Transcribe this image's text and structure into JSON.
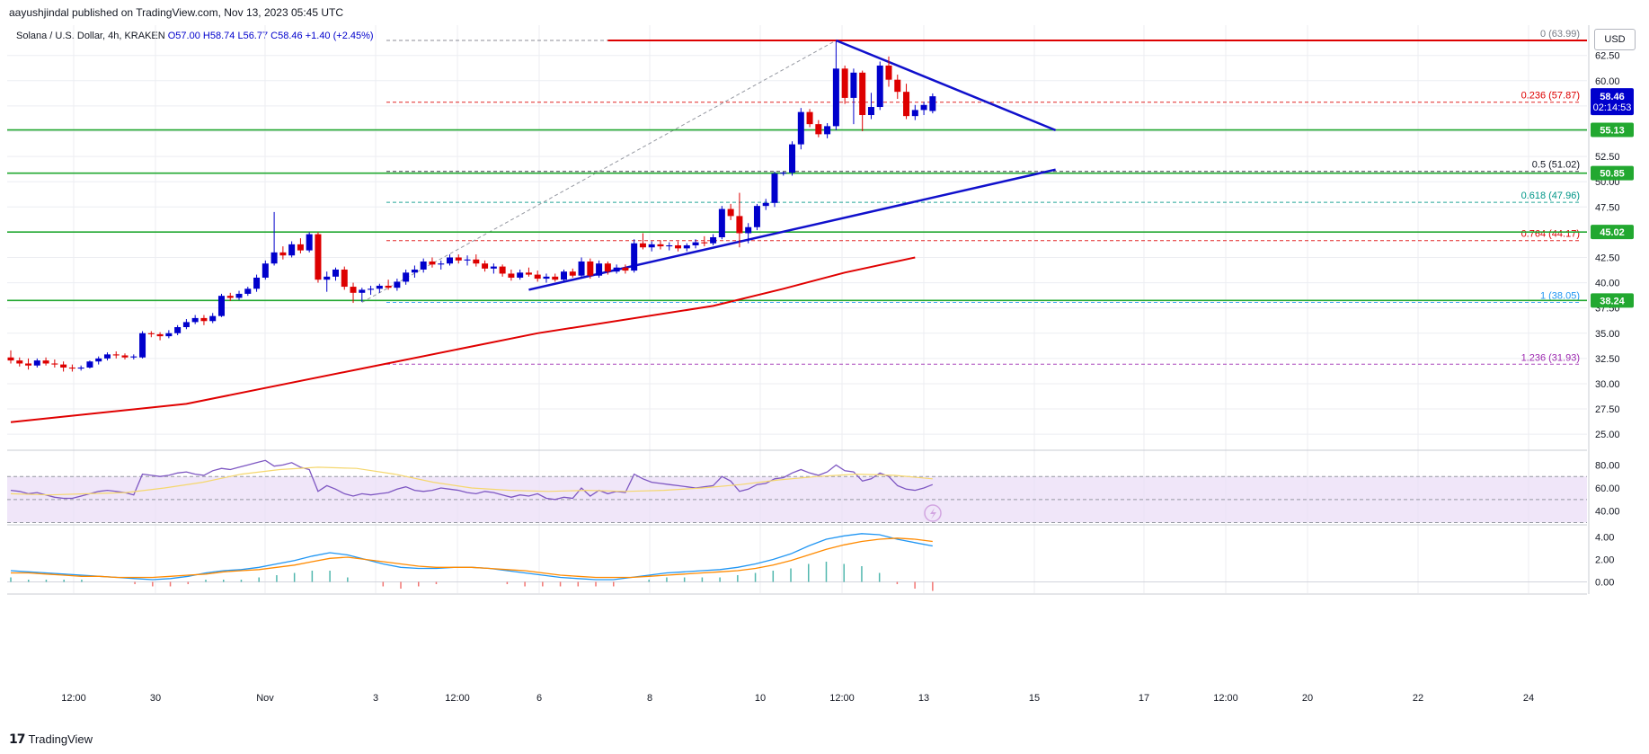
{
  "header": {
    "published": "aayushjindal published on TradingView.com, Nov 13, 2023 05:45 UTC",
    "symbol": "Solana / U.S. Dollar, 4h, KRAKEN",
    "open": "O57.00",
    "high": "H58.74",
    "low": "L56.77",
    "close": "C58.46",
    "change": "+1.40 (+2.45%)",
    "currency": "USD"
  },
  "footer": {
    "brand": "TradingView",
    "logo": "tradingview-logo"
  },
  "colors": {
    "up": "#0000cc",
    "down": "#dd0000",
    "support": "#22a830",
    "resistance": "#dd0000",
    "trendline": "#1010cc",
    "ema": "#e00000",
    "rsi_band": "#e9dcf7",
    "macd_line": "#2196f3",
    "macd_signal": "#ff8a00"
  },
  "chart_data": {
    "type": "candlestick",
    "symbol": "Solana / U.S. Dollar",
    "timeframe": "4h",
    "exchange": "KRAKEN",
    "x_tick_labels": [
      "12:00",
      "30",
      "Nov",
      "3",
      "12:00",
      "6",
      "8",
      "10",
      "12:00",
      "13",
      "15",
      "17",
      "12:00",
      "20",
      "22",
      "24"
    ],
    "y_tick_labels": [
      "25.00",
      "27.50",
      "30.00",
      "32.50",
      "35.00",
      "37.50",
      "40.00",
      "42.50",
      "45.00",
      "47.50",
      "50.00",
      "52.50",
      "55.00",
      "57.50",
      "60.00",
      "62.50"
    ],
    "ylim": [
      23.5,
      65.5
    ],
    "candles": [
      {
        "o": 32.6,
        "h": 33.3,
        "l": 32.0,
        "c": 32.3
      },
      {
        "o": 32.3,
        "h": 32.6,
        "l": 31.7,
        "c": 32.0
      },
      {
        "o": 32.0,
        "h": 32.5,
        "l": 31.4,
        "c": 31.8
      },
      {
        "o": 31.8,
        "h": 32.5,
        "l": 31.6,
        "c": 32.3
      },
      {
        "o": 32.3,
        "h": 32.6,
        "l": 31.8,
        "c": 32.0
      },
      {
        "o": 32.0,
        "h": 32.4,
        "l": 31.6,
        "c": 31.9
      },
      {
        "o": 31.9,
        "h": 32.2,
        "l": 31.2,
        "c": 31.6
      },
      {
        "o": 31.6,
        "h": 31.9,
        "l": 31.2,
        "c": 31.5
      },
      {
        "o": 31.5,
        "h": 31.8,
        "l": 31.3,
        "c": 31.6
      },
      {
        "o": 31.6,
        "h": 32.3,
        "l": 31.5,
        "c": 32.2
      },
      {
        "o": 32.2,
        "h": 32.7,
        "l": 31.9,
        "c": 32.5
      },
      {
        "o": 32.5,
        "h": 33.1,
        "l": 32.3,
        "c": 32.9
      },
      {
        "o": 32.9,
        "h": 33.2,
        "l": 32.5,
        "c": 32.8
      },
      {
        "o": 32.8,
        "h": 33.0,
        "l": 32.4,
        "c": 32.6
      },
      {
        "o": 32.6,
        "h": 32.9,
        "l": 32.4,
        "c": 32.7
      },
      {
        "o": 32.6,
        "h": 35.2,
        "l": 32.5,
        "c": 35.0
      },
      {
        "o": 35.0,
        "h": 35.2,
        "l": 34.6,
        "c": 34.9
      },
      {
        "o": 34.9,
        "h": 35.1,
        "l": 34.3,
        "c": 34.7
      },
      {
        "o": 34.7,
        "h": 35.3,
        "l": 34.5,
        "c": 35.0
      },
      {
        "o": 35.0,
        "h": 35.8,
        "l": 34.8,
        "c": 35.6
      },
      {
        "o": 35.6,
        "h": 36.4,
        "l": 35.4,
        "c": 36.1
      },
      {
        "o": 36.1,
        "h": 36.8,
        "l": 35.9,
        "c": 36.5
      },
      {
        "o": 36.5,
        "h": 36.8,
        "l": 35.8,
        "c": 36.2
      },
      {
        "o": 36.2,
        "h": 37.0,
        "l": 36.0,
        "c": 36.7
      },
      {
        "o": 36.7,
        "h": 38.9,
        "l": 36.6,
        "c": 38.7
      },
      {
        "o": 38.7,
        "h": 39.0,
        "l": 38.2,
        "c": 38.5
      },
      {
        "o": 38.5,
        "h": 39.2,
        "l": 38.3,
        "c": 38.9
      },
      {
        "o": 38.9,
        "h": 39.6,
        "l": 38.7,
        "c": 39.4
      },
      {
        "o": 39.4,
        "h": 40.8,
        "l": 39.1,
        "c": 40.5
      },
      {
        "o": 40.5,
        "h": 42.2,
        "l": 40.3,
        "c": 41.9
      },
      {
        "o": 41.9,
        "h": 47.0,
        "l": 41.7,
        "c": 43.0
      },
      {
        "o": 43.0,
        "h": 43.6,
        "l": 42.3,
        "c": 42.7
      },
      {
        "o": 42.7,
        "h": 44.1,
        "l": 42.5,
        "c": 43.8
      },
      {
        "o": 43.8,
        "h": 44.4,
        "l": 42.9,
        "c": 43.2
      },
      {
        "o": 43.2,
        "h": 45.0,
        "l": 43.0,
        "c": 44.8
      },
      {
        "o": 44.8,
        "h": 45.0,
        "l": 40.0,
        "c": 40.3
      },
      {
        "o": 40.3,
        "h": 41.1,
        "l": 39.1,
        "c": 40.6
      },
      {
        "o": 40.6,
        "h": 41.5,
        "l": 40.2,
        "c": 41.3
      },
      {
        "o": 41.3,
        "h": 41.6,
        "l": 39.3,
        "c": 39.6
      },
      {
        "o": 39.6,
        "h": 40.0,
        "l": 38.0,
        "c": 39.0
      },
      {
        "o": 39.0,
        "h": 39.5,
        "l": 38.1,
        "c": 39.3
      },
      {
        "o": 39.3,
        "h": 39.7,
        "l": 38.8,
        "c": 39.4
      },
      {
        "o": 39.4,
        "h": 39.9,
        "l": 39.0,
        "c": 39.7
      },
      {
        "o": 39.7,
        "h": 40.3,
        "l": 39.3,
        "c": 39.5
      },
      {
        "o": 39.5,
        "h": 40.4,
        "l": 39.2,
        "c": 40.1
      },
      {
        "o": 40.1,
        "h": 41.3,
        "l": 39.8,
        "c": 41.0
      },
      {
        "o": 41.0,
        "h": 41.7,
        "l": 40.5,
        "c": 41.3
      },
      {
        "o": 41.3,
        "h": 42.4,
        "l": 41.0,
        "c": 42.1
      },
      {
        "o": 42.1,
        "h": 42.5,
        "l": 41.5,
        "c": 41.8
      },
      {
        "o": 41.8,
        "h": 42.2,
        "l": 41.3,
        "c": 41.9
      },
      {
        "o": 41.9,
        "h": 42.8,
        "l": 41.7,
        "c": 42.5
      },
      {
        "o": 42.5,
        "h": 42.8,
        "l": 41.9,
        "c": 42.2
      },
      {
        "o": 42.2,
        "h": 42.7,
        "l": 41.7,
        "c": 42.3
      },
      {
        "o": 42.3,
        "h": 42.8,
        "l": 41.6,
        "c": 41.9
      },
      {
        "o": 41.9,
        "h": 42.2,
        "l": 41.1,
        "c": 41.4
      },
      {
        "o": 41.4,
        "h": 41.9,
        "l": 40.9,
        "c": 41.6
      },
      {
        "o": 41.6,
        "h": 41.8,
        "l": 40.6,
        "c": 40.9
      },
      {
        "o": 40.9,
        "h": 41.3,
        "l": 40.2,
        "c": 40.5
      },
      {
        "o": 40.5,
        "h": 41.3,
        "l": 40.3,
        "c": 41.0
      },
      {
        "o": 41.0,
        "h": 41.5,
        "l": 40.6,
        "c": 40.8
      },
      {
        "o": 40.8,
        "h": 41.2,
        "l": 40.1,
        "c": 40.4
      },
      {
        "o": 40.4,
        "h": 40.9,
        "l": 40.0,
        "c": 40.6
      },
      {
        "o": 40.6,
        "h": 40.9,
        "l": 40.1,
        "c": 40.3
      },
      {
        "o": 40.3,
        "h": 41.3,
        "l": 40.1,
        "c": 41.1
      },
      {
        "o": 41.1,
        "h": 41.4,
        "l": 40.5,
        "c": 40.7
      },
      {
        "o": 40.7,
        "h": 42.5,
        "l": 40.5,
        "c": 42.1
      },
      {
        "o": 42.1,
        "h": 42.4,
        "l": 40.4,
        "c": 40.7
      },
      {
        "o": 40.7,
        "h": 42.2,
        "l": 40.5,
        "c": 41.9
      },
      {
        "o": 41.9,
        "h": 42.1,
        "l": 40.8,
        "c": 41.1
      },
      {
        "o": 41.1,
        "h": 41.8,
        "l": 40.9,
        "c": 41.5
      },
      {
        "o": 41.5,
        "h": 41.8,
        "l": 40.9,
        "c": 41.2
      },
      {
        "o": 41.2,
        "h": 44.3,
        "l": 41.0,
        "c": 43.9
      },
      {
        "o": 43.9,
        "h": 44.9,
        "l": 43.3,
        "c": 43.5
      },
      {
        "o": 43.5,
        "h": 44.1,
        "l": 43.1,
        "c": 43.8
      },
      {
        "o": 43.8,
        "h": 44.2,
        "l": 43.3,
        "c": 43.6
      },
      {
        "o": 43.6,
        "h": 44.0,
        "l": 43.2,
        "c": 43.7
      },
      {
        "o": 43.7,
        "h": 44.1,
        "l": 43.1,
        "c": 43.4
      },
      {
        "o": 43.4,
        "h": 43.9,
        "l": 43.1,
        "c": 43.7
      },
      {
        "o": 43.7,
        "h": 44.3,
        "l": 43.4,
        "c": 44.0
      },
      {
        "o": 44.0,
        "h": 44.6,
        "l": 43.6,
        "c": 43.9
      },
      {
        "o": 43.9,
        "h": 44.8,
        "l": 43.7,
        "c": 44.5
      },
      {
        "o": 44.5,
        "h": 47.6,
        "l": 44.3,
        "c": 47.3
      },
      {
        "o": 47.3,
        "h": 47.8,
        "l": 46.2,
        "c": 46.6
      },
      {
        "o": 46.6,
        "h": 48.9,
        "l": 43.5,
        "c": 44.9
      },
      {
        "o": 44.9,
        "h": 45.9,
        "l": 43.9,
        "c": 45.5
      },
      {
        "o": 45.5,
        "h": 47.8,
        "l": 45.2,
        "c": 47.6
      },
      {
        "o": 47.6,
        "h": 48.3,
        "l": 47.2,
        "c": 47.9
      },
      {
        "o": 47.9,
        "h": 51.0,
        "l": 47.5,
        "c": 50.8
      },
      {
        "o": 50.8,
        "h": 51.0,
        "l": 50.6,
        "c": 50.9
      },
      {
        "o": 50.9,
        "h": 54.0,
        "l": 50.6,
        "c": 53.7
      },
      {
        "o": 53.7,
        "h": 57.3,
        "l": 53.2,
        "c": 56.9
      },
      {
        "o": 56.9,
        "h": 57.2,
        "l": 55.4,
        "c": 55.7
      },
      {
        "o": 55.7,
        "h": 56.1,
        "l": 54.4,
        "c": 54.7
      },
      {
        "o": 54.7,
        "h": 55.8,
        "l": 54.3,
        "c": 55.5
      },
      {
        "o": 55.5,
        "h": 63.9,
        "l": 55.1,
        "c": 61.2
      },
      {
        "o": 61.2,
        "h": 61.5,
        "l": 57.7,
        "c": 58.3
      },
      {
        "o": 58.3,
        "h": 61.2,
        "l": 55.7,
        "c": 60.8
      },
      {
        "o": 60.8,
        "h": 61.0,
        "l": 55.0,
        "c": 56.6
      },
      {
        "o": 56.6,
        "h": 58.8,
        "l": 56.2,
        "c": 57.4
      },
      {
        "o": 57.4,
        "h": 61.9,
        "l": 57.1,
        "c": 61.5
      },
      {
        "o": 61.5,
        "h": 62.4,
        "l": 59.4,
        "c": 60.1
      },
      {
        "o": 60.1,
        "h": 60.6,
        "l": 58.2,
        "c": 58.9
      },
      {
        "o": 58.9,
        "h": 59.7,
        "l": 56.2,
        "c": 56.5
      },
      {
        "o": 56.5,
        "h": 57.6,
        "l": 56.1,
        "c": 57.1
      },
      {
        "o": 57.1,
        "h": 57.9,
        "l": 56.6,
        "c": 57.6
      },
      {
        "o": 57.0,
        "h": 58.74,
        "l": 56.77,
        "c": 58.46
      }
    ],
    "fibonacci": [
      {
        "label": "0 (63.99)",
        "value": 63.99,
        "color": "#787b86"
      },
      {
        "label": "0.236 (57.87)",
        "value": 57.87,
        "color": "#dd0000"
      },
      {
        "label": "0.5 (51.02)",
        "value": 51.02,
        "color": "#131722"
      },
      {
        "label": "0.618 (47.96)",
        "value": 47.96,
        "color": "#009688"
      },
      {
        "label": "0.764 (44.17)",
        "value": 44.17,
        "color": "#dd0000"
      },
      {
        "label": "1 (38.05)",
        "value": 38.05,
        "color": "#2196f3"
      },
      {
        "label": "1.236 (31.93)",
        "value": 31.93,
        "color": "#9c27b0"
      }
    ],
    "horizontal_levels": [
      {
        "price": 55.13,
        "label": "55.13",
        "color": "#22a830"
      },
      {
        "price": 50.85,
        "label": "50.85",
        "color": "#22a830"
      },
      {
        "price": 45.02,
        "label": "45.02",
        "color": "#22a830"
      },
      {
        "price": 38.24,
        "label": "38.24",
        "color": "#22a830"
      }
    ],
    "resistance_price": 63.99,
    "last_price": {
      "value": "58.46",
      "countdown": "02:14:53"
    },
    "trendlines": [
      {
        "from": {
          "i": 59,
          "p": 39.3
        },
        "to": {
          "i": 119,
          "p": 51.2
        }
      },
      {
        "from": {
          "i": 94,
          "p": 63.99
        },
        "to": {
          "i": 119,
          "p": 55.1
        }
      }
    ],
    "ema_points": [
      [
        0,
        26.2
      ],
      [
        20,
        28.0
      ],
      [
        40,
        31.5
      ],
      [
        60,
        35.0
      ],
      [
        80,
        37.7
      ],
      [
        88,
        39.4
      ],
      [
        95,
        41.0
      ],
      [
        103,
        42.5
      ]
    ],
    "rsi": {
      "y_tick_labels": [
        "40.00",
        "60.00",
        "80.00"
      ],
      "ylim": [
        28,
        92
      ],
      "band": [
        30,
        70
      ],
      "mid": 50,
      "values": [
        58,
        57,
        55,
        56,
        54,
        52,
        51,
        51,
        53,
        55,
        57,
        58,
        57,
        56,
        54,
        72,
        71,
        70,
        71,
        73,
        74,
        72,
        71,
        75,
        77,
        76,
        78,
        80,
        82,
        84,
        79,
        80,
        82,
        78,
        76,
        57,
        62,
        59,
        55,
        53,
        55,
        54,
        55,
        56,
        59,
        61,
        58,
        57,
        58,
        60,
        59,
        58,
        56,
        55,
        57,
        56,
        54,
        52,
        54,
        53,
        55,
        51,
        50,
        52,
        51,
        60,
        53,
        58,
        55,
        57,
        56,
        72,
        68,
        65,
        64,
        63,
        62,
        61,
        60,
        61,
        62,
        70,
        66,
        57,
        59,
        63,
        64,
        68,
        69,
        73,
        76,
        73,
        71,
        74,
        80,
        75,
        74,
        66,
        68,
        73,
        70,
        62,
        59,
        58,
        60,
        63
      ],
      "signal": [
        55,
        54,
        55,
        56,
        60,
        65,
        72,
        76,
        78,
        77,
        72,
        65,
        60,
        58,
        57,
        58,
        57,
        58,
        60,
        63,
        67,
        70,
        72,
        71,
        68
      ]
    },
    "macd": {
      "y_tick_labels": [
        "0.00",
        "2.00",
        "4.00"
      ],
      "ylim": [
        -1.0,
        5.0
      ],
      "macd_line": [
        1.0,
        0.9,
        0.8,
        0.7,
        0.6,
        0.5,
        0.4,
        0.3,
        0.2,
        0.3,
        0.5,
        0.8,
        1.0,
        1.1,
        1.3,
        1.6,
        1.9,
        2.3,
        2.6,
        2.4,
        2.0,
        1.6,
        1.3,
        1.2,
        1.2,
        1.3,
        1.3,
        1.2,
        1.0,
        0.8,
        0.6,
        0.4,
        0.3,
        0.2,
        0.2,
        0.4,
        0.6,
        0.8,
        0.9,
        1.0,
        1.1,
        1.3,
        1.6,
        2.0,
        2.5,
        3.2,
        3.8,
        4.1,
        4.3,
        4.2,
        3.8,
        3.5,
        3.2
      ],
      "signal_line": [
        0.8,
        0.8,
        0.7,
        0.6,
        0.5,
        0.5,
        0.4,
        0.4,
        0.4,
        0.5,
        0.6,
        0.7,
        0.9,
        1.0,
        1.1,
        1.3,
        1.5,
        1.8,
        2.1,
        2.2,
        2.0,
        1.8,
        1.6,
        1.4,
        1.3,
        1.3,
        1.3,
        1.2,
        1.1,
        1.0,
        0.8,
        0.6,
        0.5,
        0.4,
        0.4,
        0.4,
        0.5,
        0.6,
        0.7,
        0.8,
        0.9,
        1.0,
        1.2,
        1.5,
        1.9,
        2.4,
        2.9,
        3.3,
        3.6,
        3.8,
        3.9,
        3.8,
        3.6
      ]
    }
  }
}
